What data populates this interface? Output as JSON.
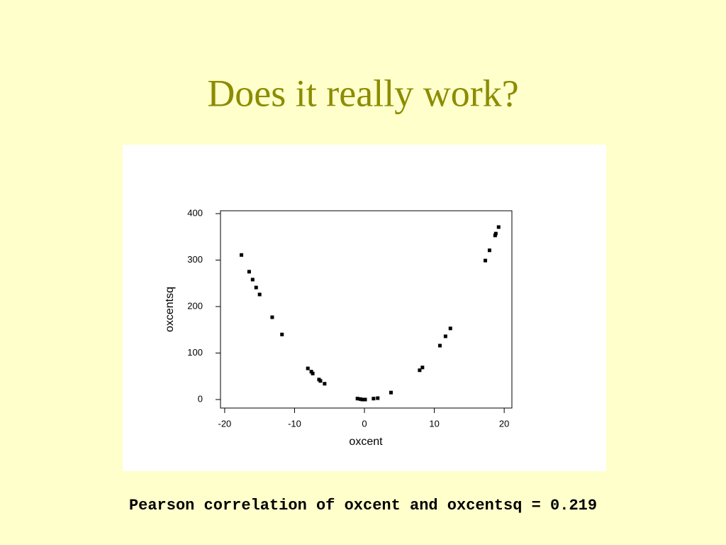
{
  "title": "Does it really work?",
  "caption": "Pearson correlation of oxcent and oxcentsq = 0.219",
  "chart_data": {
    "type": "scatter",
    "xlabel": "oxcent",
    "ylabel": "oxcentsq",
    "x": [
      -17.6,
      -16.5,
      -16.0,
      -15.5,
      -15.0,
      -13.2,
      -11.8,
      -8.1,
      -7.6,
      -7.4,
      -6.5,
      -6.3,
      -5.7,
      -1.0,
      -0.6,
      -0.3,
      0.1,
      1.3,
      1.9,
      3.8,
      7.9,
      8.3,
      10.8,
      11.6,
      12.3,
      17.3,
      17.9,
      18.7,
      18.8,
      19.2
    ],
    "values": [
      311,
      275,
      258,
      241,
      226,
      177,
      140,
      67,
      60,
      56,
      43,
      40,
      34,
      2,
      1,
      0,
      0,
      2,
      3,
      15,
      63,
      69,
      116,
      136,
      153,
      299,
      321,
      353,
      357,
      371
    ],
    "color": "#000000",
    "xlim": [
      -20.6,
      21.1
    ],
    "ylim": [
      -18.3,
      406.1
    ],
    "xticks": [
      -20,
      -10,
      0,
      10,
      20
    ],
    "yticks": [
      0,
      100,
      200,
      300,
      400
    ]
  }
}
